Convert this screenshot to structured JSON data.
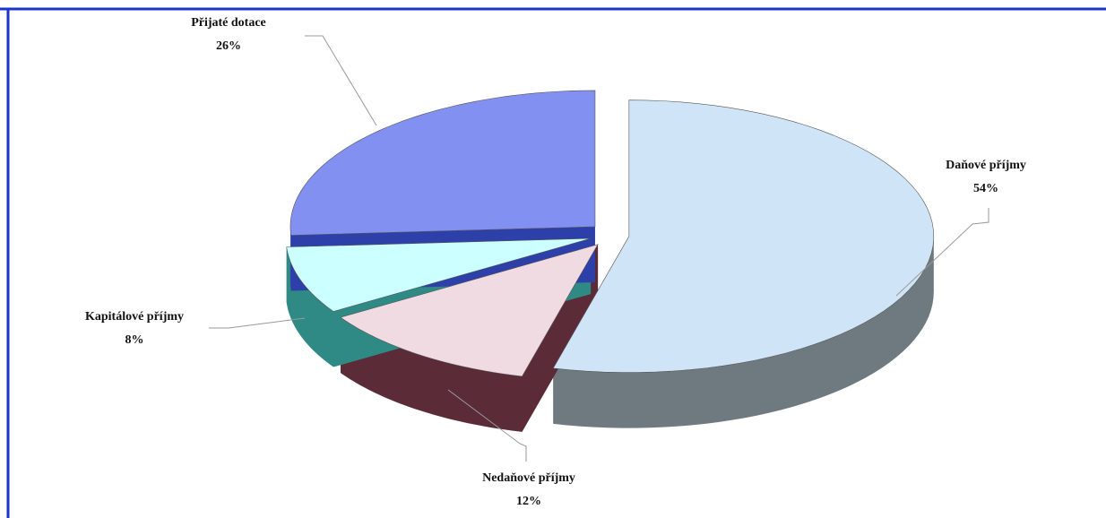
{
  "chart_data": {
    "type": "pie",
    "categories": [
      "Daňové příjmy",
      "Nedaňové příjmy",
      "Kapitálové příjmy",
      "Přijaté dotace"
    ],
    "values": [
      54,
      12,
      8,
      26
    ],
    "value_labels": [
      "54%",
      "12%",
      "8%",
      "26%"
    ],
    "colors": [
      "#cfe4f6",
      "#f1dbe3",
      "#ccffff",
      "#8290f2"
    ],
    "side_colors": [
      "#6e7a80",
      "#5b2b38",
      "#2f8a86",
      "#2d3fa8"
    ]
  }
}
